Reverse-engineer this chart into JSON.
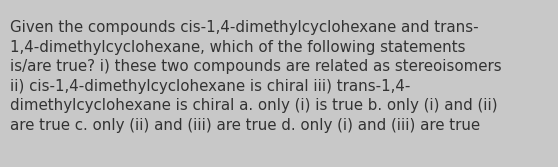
{
  "text": "Given the compounds cis-1,4-dimethylcyclohexane and trans-\n1,4-dimethylcyclohexane, which of the following statements\nis/are true? i) these two compounds are related as stereoisomers\nii) cis-1,4-dimethylcyclohexane is chiral iii) trans-1,4-\ndimethylcyclohexane is chiral a. only (i) is true b. only (i) and (ii)\nare true c. only (ii) and (iii) are true d. only (i) and (iii) are true",
  "background_color": "#c8c8c8",
  "text_color": "#333333",
  "font_size": 10.8,
  "fig_width": 5.58,
  "fig_height": 1.67,
  "dpi": 100
}
